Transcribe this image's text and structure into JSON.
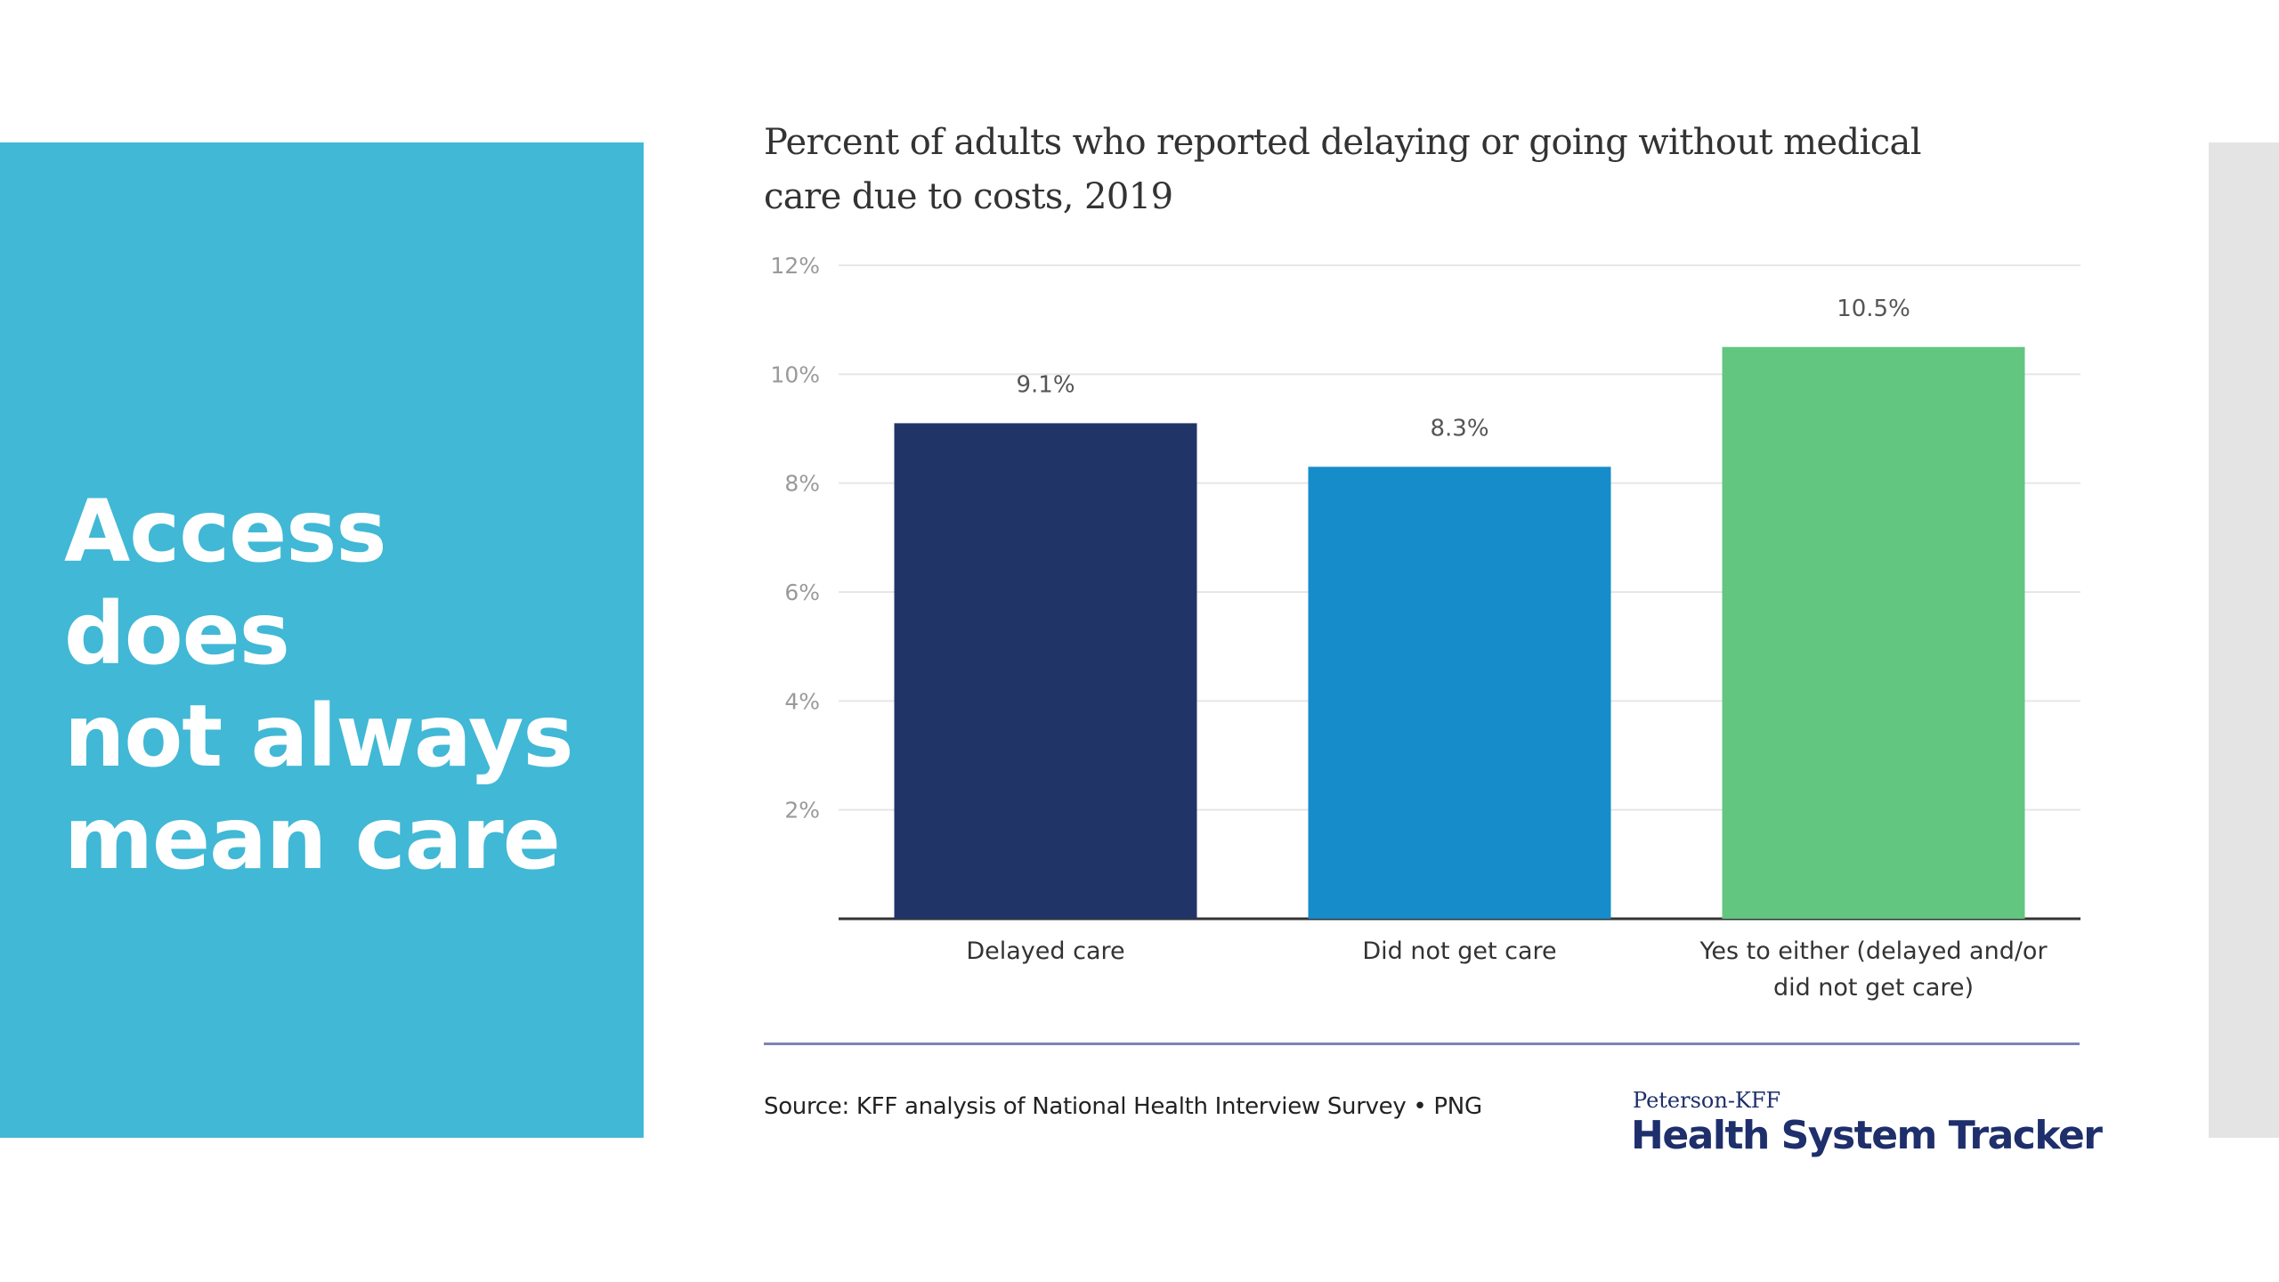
{
  "slide": {
    "title_lines": [
      "Access does",
      "not always",
      "mean care"
    ]
  },
  "chart_data": {
    "type": "bar",
    "title": "Percent of adults who reported delaying or going without medical care due to costs, 2019",
    "title_lines": [
      "Percent of adults who reported delaying or going without medical",
      "care due to costs, 2019"
    ],
    "categories": [
      "Delayed care",
      "Did not get care",
      "Yes to either (delayed and/or did not get care)"
    ],
    "category_label_lines": [
      [
        "Delayed care"
      ],
      [
        "Did not get care"
      ],
      [
        "Yes to either (delayed and/or",
        "did not get care)"
      ]
    ],
    "values": [
      9.1,
      8.3,
      10.5
    ],
    "data_labels": [
      "9.1%",
      "8.3%",
      "10.5%"
    ],
    "bar_colors": [
      "#213468",
      "#168ccb",
      "#63c680"
    ],
    "ylim": [
      0,
      12
    ],
    "y_ticks": [
      2,
      4,
      6,
      8,
      10,
      12
    ],
    "y_tick_labels": [
      "2%",
      "4%",
      "6%",
      "8%",
      "10%",
      "12%"
    ],
    "xlabel": "",
    "ylabel": "",
    "grid": true
  },
  "footer": {
    "source": "Source: KFF analysis of National Health Interview Survey • PNG",
    "brand_top": "Peterson-KFF",
    "brand_main": "Health System Tracker"
  },
  "colors": {
    "panel": "#41b8d5",
    "brand": "#1e2f6c",
    "rule": "#7d83b5",
    "side_strip": "#e4e4e4"
  }
}
